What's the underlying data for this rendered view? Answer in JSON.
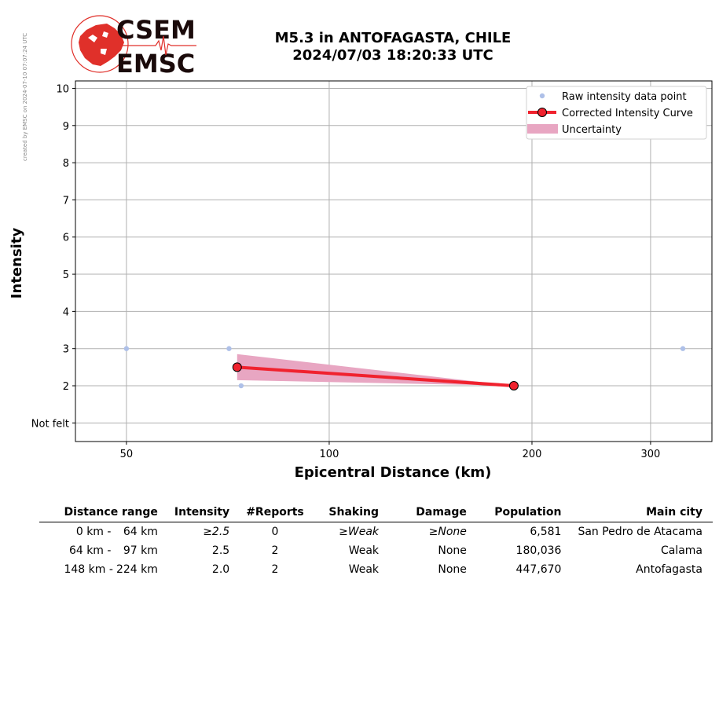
{
  "credit": "created by EMSC on 2024-07-10 07:07:24 UTC",
  "logo": {
    "top_text": "CSEM",
    "bottom_text": "EMSC"
  },
  "title": {
    "line1": "M5.3 in ANTOFAGASTA, CHILE",
    "line2": "2024/07/03 18:20:33 UTC"
  },
  "chart_data": {
    "type": "scatter",
    "xlabel": "Epicentral Distance (km)",
    "ylabel": "Intensity",
    "x_scale": "log",
    "xlim": [
      42,
      370
    ],
    "ylim": [
      0.5,
      10.2
    ],
    "x_ticks": [
      50,
      100,
      200,
      300
    ],
    "x_tick_labels": [
      "50",
      "100",
      "200",
      "300"
    ],
    "y_ticks": [
      1,
      2,
      3,
      4,
      5,
      6,
      7,
      8,
      9,
      10
    ],
    "y_tick_labels": [
      "Not felt",
      "2",
      "3",
      "4",
      "5",
      "6",
      "7",
      "8",
      "9",
      "10"
    ],
    "grid": true,
    "legend_position": "top-right",
    "legend": [
      "Raw intensity data point",
      "Corrected Intensity Curve",
      "Uncertainty"
    ],
    "raw_points": [
      {
        "x": 50,
        "y": 3
      },
      {
        "x": 71,
        "y": 3
      },
      {
        "x": 74,
        "y": 2
      },
      {
        "x": 335,
        "y": 3
      }
    ],
    "curve": [
      {
        "x": 73,
        "y": 2.5
      },
      {
        "x": 188,
        "y": 2.0
      }
    ],
    "uncertainty": [
      {
        "x": 73,
        "low": 2.15,
        "high": 2.85
      },
      {
        "x": 188,
        "low": 2.0,
        "high": 2.0
      }
    ],
    "colors": {
      "raw": "#aec0e8",
      "curve": "#f0222e",
      "uncertainty": "#e8a6c2",
      "grid": "#b0b0b0"
    }
  },
  "table": {
    "headers": [
      "Distance range",
      "Intensity",
      "#Reports",
      "Shaking",
      "Damage",
      "Population",
      "Main city"
    ],
    "rows": [
      {
        "dist_from": "0 km -",
        "dist_to": "64 km",
        "intensity": "≥2.5",
        "reports": "0",
        "shaking": "≥Weak",
        "damage": "≥None",
        "population": "6,581",
        "city": "San Pedro de Atacama"
      },
      {
        "dist_from": "64 km -",
        "dist_to": "97 km",
        "intensity": "2.5",
        "reports": "2",
        "shaking": "Weak",
        "damage": "None",
        "population": "180,036",
        "city": "Calama"
      },
      {
        "dist_from": "148 km -",
        "dist_to": "224 km",
        "intensity": "2.0",
        "reports": "2",
        "shaking": "Weak",
        "damage": "None",
        "population": "447,670",
        "city": "Antofagasta"
      }
    ]
  }
}
